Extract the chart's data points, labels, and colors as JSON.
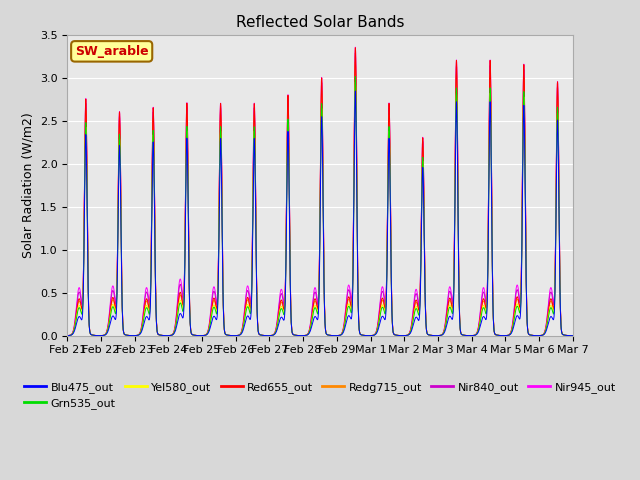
{
  "title": "Reflected Solar Bands",
  "ylabel": "Solar Radiation (W/m2)",
  "ylim": [
    0.0,
    3.5
  ],
  "yticks": [
    0.0,
    0.5,
    1.0,
    1.5,
    2.0,
    2.5,
    3.0,
    3.5
  ],
  "xtick_labels": [
    "Feb 21",
    "Feb 22",
    "Feb 23",
    "Feb 24",
    "Feb 25",
    "Feb 26",
    "Feb 27",
    "Feb 28",
    "Feb 29",
    "Mar 1",
    "Mar 2",
    "Mar 3",
    "Mar 4",
    "Mar 5",
    "Mar 6",
    "Mar 7"
  ],
  "annotation_text": "SW_arable",
  "annotation_color": "#cc0000",
  "annotation_bg": "#ffff99",
  "annotation_border": "#996600",
  "series_colors": {
    "Blu475_out": "#0000ff",
    "Grn535_out": "#00dd00",
    "Yel580_out": "#ffff00",
    "Red655_out": "#ff0000",
    "Redg715_out": "#ff8800",
    "Nir840_out": "#cc00cc",
    "Nir945_out": "#ff00ff"
  },
  "series_order": [
    "Blu475_out",
    "Grn535_out",
    "Yel580_out",
    "Red655_out",
    "Redg715_out",
    "Nir840_out",
    "Nir945_out"
  ],
  "background_color": "#d8d8d8",
  "plot_bg_color": "#e8e8e8",
  "grid_color": "#ffffff",
  "n_days": 15,
  "peak_values": [
    2.7,
    2.55,
    2.6,
    2.65,
    2.65,
    2.65,
    2.75,
    2.95,
    3.3,
    2.65,
    2.25,
    3.15,
    3.15,
    3.1,
    2.9
  ],
  "secondary_peak_values": [
    0.52,
    0.54,
    0.52,
    0.62,
    0.53,
    0.54,
    0.5,
    0.52,
    0.55,
    0.53,
    0.5,
    0.53,
    0.52,
    0.55,
    0.52
  ],
  "band_scales": {
    "Blu475_out": [
      0.35,
      0.85
    ],
    "Grn535_out": [
      0.55,
      0.9
    ],
    "Yel580_out": [
      0.6,
      0.88
    ],
    "Red655_out": [
      0.75,
      1.0
    ],
    "Redg715_out": [
      0.7,
      0.95
    ],
    "Nir840_out": [
      0.9,
      0.98
    ],
    "Nir945_out": [
      1.0,
      1.0
    ]
  },
  "title_fontsize": 11,
  "label_fontsize": 9,
  "tick_fontsize": 8
}
